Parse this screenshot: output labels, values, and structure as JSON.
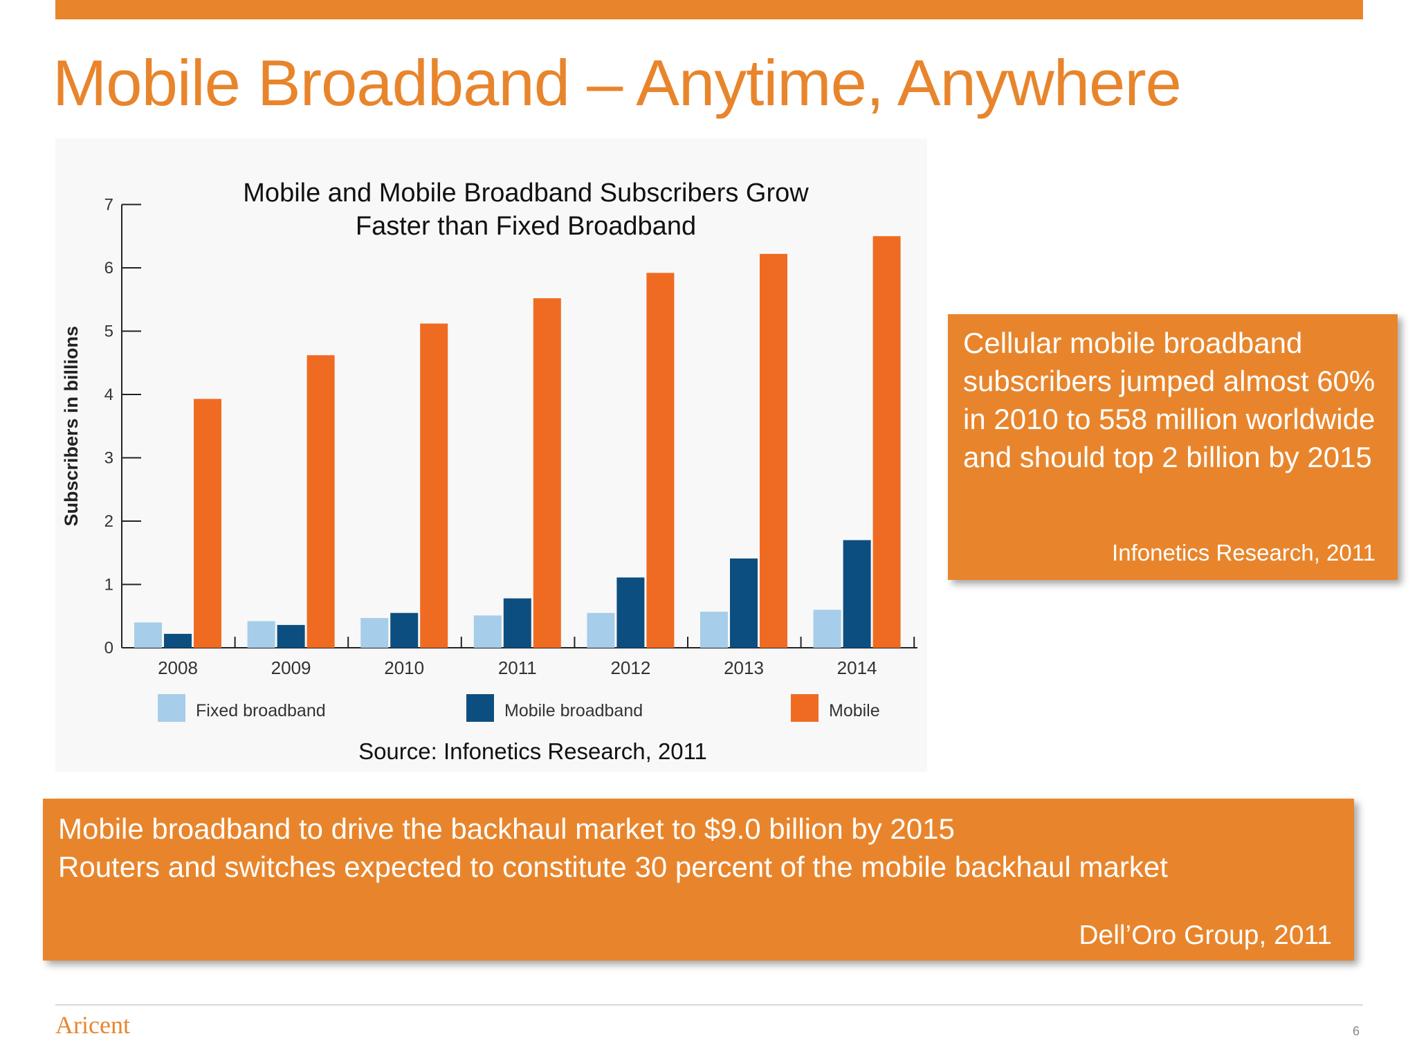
{
  "slide": {
    "title": "Mobile Broadband – Anytime, Anywhere",
    "page_number": "6",
    "logo_text": "Aricent"
  },
  "chart_title_lines": [
    "Mobile and Mobile Broadband Subscribers Grow",
    "Faster than Fixed Broadband"
  ],
  "chart_source": "Source: Infonetics Research, 2011",
  "callout_right": {
    "text": "Cellular mobile broadband subscribers jumped almost 60% in 2010 to 558 million worldwide and should top 2 billion by 2015",
    "citation": "Infonetics Research, 2011"
  },
  "callout_bottom": {
    "lines": [
      "Mobile broadband to drive the backhaul market to $9.0 billion by 2015",
      "Routers and switches expected to constitute 30 percent of the mobile backhaul market"
    ],
    "citation": "Dell’Oro Group, 2011"
  },
  "colors": {
    "accent": "#e8852c",
    "fixed_broadband": "#a6cde9",
    "mobile_broadband": "#0d4e80",
    "mobile": "#ef6b22"
  },
  "chart_data": {
    "type": "bar",
    "title": "Mobile and Mobile Broadband Subscribers Grow Faster than Fixed Broadband",
    "ylabel": "Subscribers in billions",
    "xlabel": "",
    "ylim": [
      0,
      7
    ],
    "yticks": [
      "0",
      "1",
      "2",
      "3",
      "4",
      "5",
      "6",
      "7"
    ],
    "categories": [
      "2008",
      "2009",
      "2010",
      "2011",
      "2012",
      "2013",
      "2014"
    ],
    "legend_position": "bottom",
    "grid": false,
    "series": [
      {
        "name": "Fixed broadband",
        "values": [
          0.4,
          0.42,
          0.47,
          0.51,
          0.55,
          0.57,
          0.6
        ]
      },
      {
        "name": "Mobile broadband",
        "values": [
          0.22,
          0.36,
          0.55,
          0.78,
          1.11,
          1.41,
          1.7
        ]
      },
      {
        "name": "Mobile",
        "values": [
          3.93,
          4.62,
          5.12,
          5.52,
          5.92,
          6.22,
          6.5
        ]
      }
    ]
  }
}
